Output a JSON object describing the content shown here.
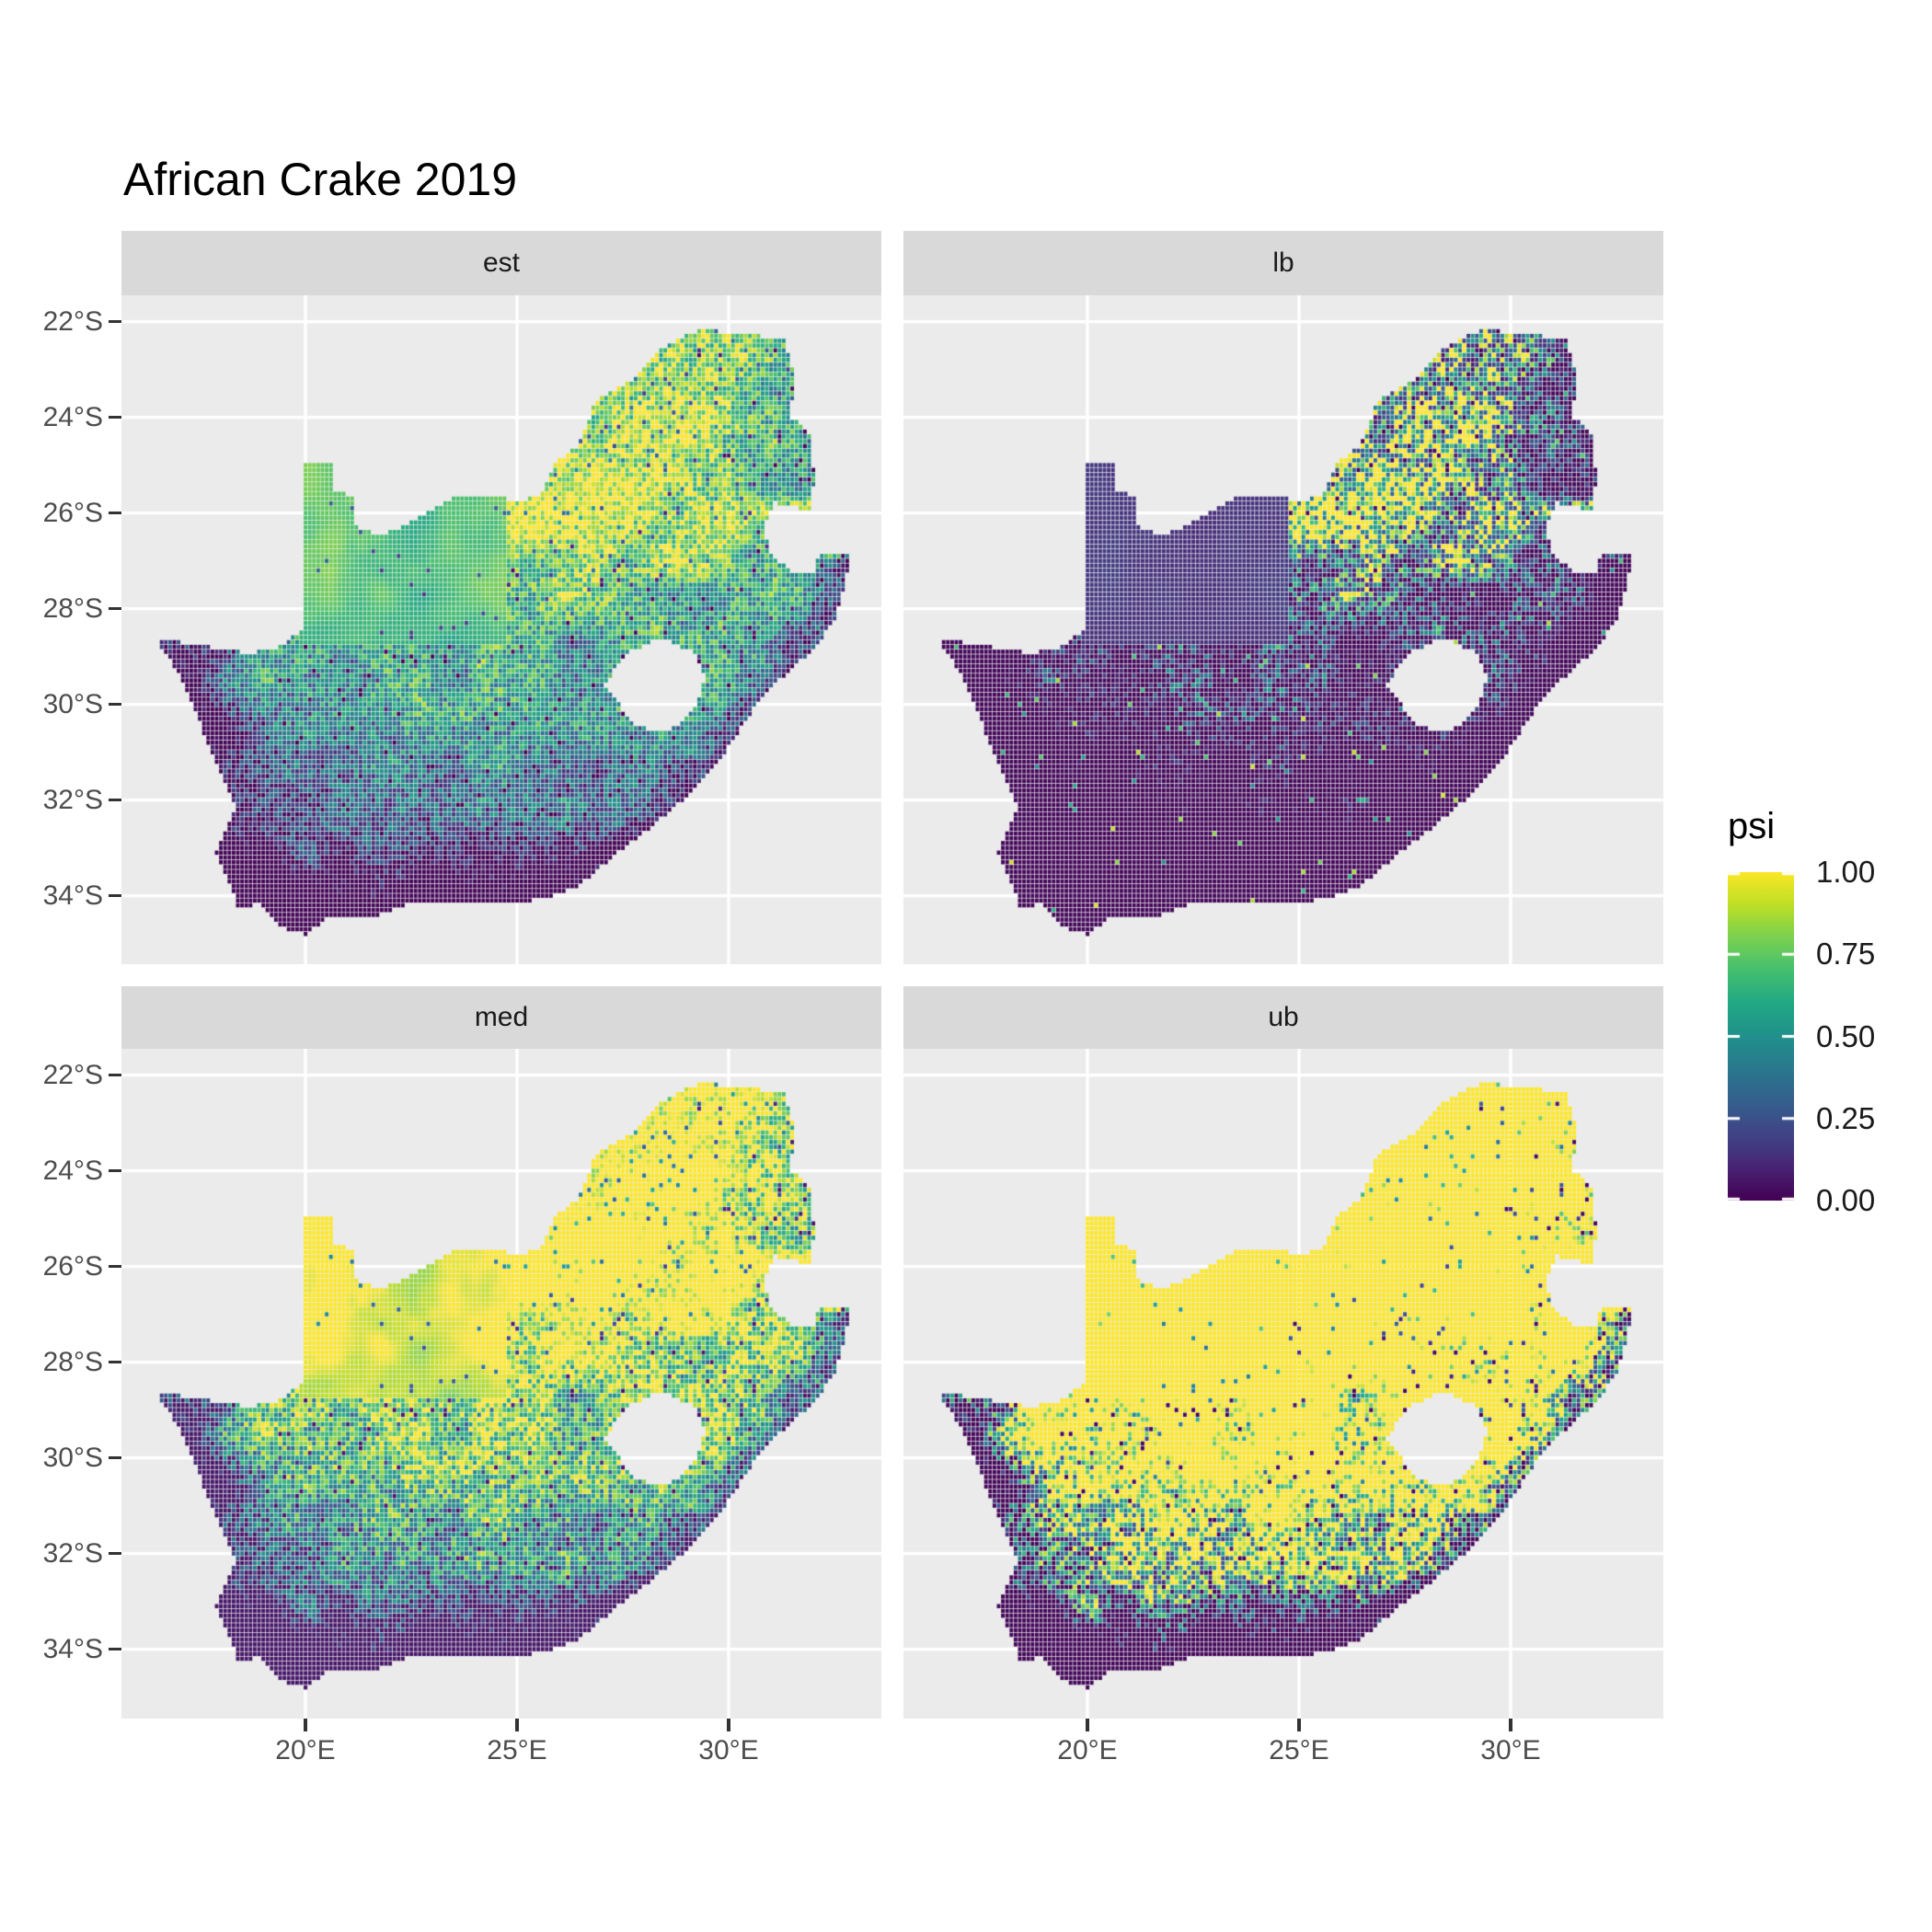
{
  "title": "African Crake 2019",
  "facets": [
    {
      "label": "est",
      "transform": "estimate"
    },
    {
      "label": "lb",
      "transform": "lower_bound"
    },
    {
      "label": "med",
      "transform": "median"
    },
    {
      "label": "ub",
      "transform": "upper_bound"
    }
  ],
  "axes": {
    "x": {
      "ticks": [
        {
          "label": "20°E",
          "lon": 20
        },
        {
          "label": "25°E",
          "lon": 25
        },
        {
          "label": "30°E",
          "lon": 30
        }
      ]
    },
    "y": {
      "ticks": [
        {
          "label": "22°S",
          "lat": -22
        },
        {
          "label": "24°S",
          "lat": -24
        },
        {
          "label": "26°S",
          "lat": -26
        },
        {
          "label": "28°S",
          "lat": -28
        },
        {
          "label": "30°S",
          "lat": -30
        },
        {
          "label": "32°S",
          "lat": -32
        },
        {
          "label": "34°S",
          "lat": -34
        }
      ]
    }
  },
  "legend": {
    "title": "psi",
    "ticks": [
      {
        "label": "1.00",
        "value": 1.0
      },
      {
        "label": "0.75",
        "value": 0.75
      },
      {
        "label": "0.50",
        "value": 0.5
      },
      {
        "label": "0.25",
        "value": 0.25
      },
      {
        "label": "0.00",
        "value": 0.0
      }
    ]
  },
  "style": {
    "background": "#FFFFFF",
    "panel_bg": "#EBEBEB",
    "strip_bg": "#D9D9D9",
    "gridline": "#FFFFFF",
    "axis_text": "#4D4D4D",
    "tick_color": "#333333",
    "strip_text": "#1A1A1A",
    "title_color": "#000000"
  },
  "chart_data": {
    "type": "heatmap",
    "subtype": "faceted raster occupancy map (ggplot2 geom_raster + facet_wrap)",
    "title": "African Crake 2019",
    "region": "South Africa",
    "facet_values": [
      "est",
      "lb",
      "med",
      "ub"
    ],
    "fill_variable": "psi",
    "fill_range": [
      0,
      1
    ],
    "legend_breaks": [
      0.0,
      0.25,
      0.5,
      0.75,
      1.0
    ],
    "colormap": "viridis",
    "colormap_stops": [
      [
        0.0,
        "#440154"
      ],
      [
        0.1,
        "#482475"
      ],
      [
        0.2,
        "#414487"
      ],
      [
        0.3,
        "#355F8D"
      ],
      [
        0.4,
        "#2A788E"
      ],
      [
        0.5,
        "#21918C"
      ],
      [
        0.6,
        "#22A884"
      ],
      [
        0.7,
        "#44BF70"
      ],
      [
        0.8,
        "#7AD151"
      ],
      [
        0.9,
        "#BDDF26"
      ],
      [
        1.0,
        "#FDE725"
      ]
    ],
    "extent": {
      "lon": [
        15.652,
        33.65
      ],
      "lat": [
        -35.43,
        -21.45
      ]
    },
    "cell_size_deg": 0.1,
    "grid_major_lon": [
      20,
      25,
      30
    ],
    "grid_major_lat": [
      -22,
      -24,
      -26,
      -28,
      -30,
      -32,
      -34
    ],
    "facet_summaries": {
      "est": "Estimated psi: high (green/yellow, 0.6-1.0) in the north and north-east with a bright core near 26-29E 25-27S, smooth light-green Kalahari strip west of 24E, speckled mid values (0.3-0.7) through the centre, low (dark purple, 0-0.2) along the west coast, south-west and the southern coastal belt.",
      "lb": "Lower bound: mostly near 0 (dark purple) everywhere; uniform slate-blue (~0.2) over the Kalahari strip; scattered yellow/green clusters (0.6-1.0) only in the north-east core; sparse bright speckles elsewhere.",
      "med": "Median psi: like est but brighter - solid yellow (~1.0) across the north and Kalahari, green/teal mid-latitudes, dark purple south and west coastal margins.",
      "ub": "Upper bound: almost uniformly 1.0 (yellow) nationwide, with dark purple/teal (0-0.4) confined to the west coast edge, the southern coastal belt and east coast fringe, plus green speckles inland in the south."
    },
    "boundary_lonlat": [
      [
        16.45,
        -28.6
      ],
      [
        17.6,
        -28.78
      ],
      [
        18.6,
        -28.92
      ],
      [
        19.3,
        -28.86
      ],
      [
        19.98,
        -28.42
      ],
      [
        19.98,
        -24.95
      ],
      [
        20.65,
        -24.92
      ],
      [
        20.6,
        -25.55
      ],
      [
        21.1,
        -25.62
      ],
      [
        21.15,
        -26.28
      ],
      [
        21.8,
        -26.48
      ],
      [
        22.55,
        -26.15
      ],
      [
        22.95,
        -25.95
      ],
      [
        23.65,
        -25.6
      ],
      [
        24.25,
        -25.62
      ],
      [
        25.0,
        -25.75
      ],
      [
        25.55,
        -25.62
      ],
      [
        25.9,
        -24.92
      ],
      [
        26.45,
        -24.6
      ],
      [
        26.85,
        -23.68
      ],
      [
        27.7,
        -23.22
      ],
      [
        28.35,
        -22.58
      ],
      [
        29.35,
        -22.15
      ],
      [
        30.3,
        -22.28
      ],
      [
        31.3,
        -22.32
      ],
      [
        31.6,
        -23.3
      ],
      [
        31.42,
        -23.95
      ],
      [
        31.95,
        -24.35
      ],
      [
        32.02,
        -25.3
      ],
      [
        31.95,
        -25.95
      ],
      [
        31.1,
        -25.78
      ],
      [
        30.82,
        -26.3
      ],
      [
        31.05,
        -26.95
      ],
      [
        31.5,
        -27.2
      ],
      [
        31.97,
        -27.31
      ],
      [
        32.13,
        -26.88
      ],
      [
        32.89,
        -26.86
      ],
      [
        32.55,
        -28.2
      ],
      [
        32.0,
        -28.85
      ],
      [
        31.25,
        -29.45
      ],
      [
        30.65,
        -30.0
      ],
      [
        30.0,
        -30.9
      ],
      [
        29.25,
        -31.75
      ],
      [
        28.4,
        -32.4
      ],
      [
        27.4,
        -33.1
      ],
      [
        26.45,
        -33.8
      ],
      [
        25.65,
        -34.05
      ],
      [
        24.85,
        -34.2
      ],
      [
        23.6,
        -34.1
      ],
      [
        22.55,
        -34.15
      ],
      [
        21.6,
        -34.45
      ],
      [
        20.5,
        -34.5
      ],
      [
        20.0,
        -34.83
      ],
      [
        19.35,
        -34.62
      ],
      [
        18.85,
        -34.15
      ],
      [
        18.42,
        -34.32
      ],
      [
        18.3,
        -33.9
      ],
      [
        17.9,
        -33.1
      ],
      [
        18.35,
        -32.1
      ],
      [
        17.6,
        -30.6
      ],
      [
        17.05,
        -29.4
      ]
    ],
    "lesotho_hole_lonlat": [
      [
        27.05,
        -29.6
      ],
      [
        27.55,
        -28.95
      ],
      [
        28.4,
        -28.6
      ],
      [
        29.15,
        -28.9
      ],
      [
        29.45,
        -29.4
      ],
      [
        29.25,
        -30.05
      ],
      [
        28.55,
        -30.6
      ],
      [
        27.8,
        -30.45
      ]
    ],
    "render_params": {
      "seed": 7,
      "gradient": {
        "south_lat": -35.3,
        "span": 13.0,
        "base_min": 0.1,
        "base_amp": 0.8
      },
      "hotspots": [
        {
          "lon": 27.8,
          "lat": -25.9,
          "sx": 2.8,
          "sy": 1.9,
          "amp": 0.28
        },
        {
          "lon": 24.0,
          "lat": -26.8,
          "sx": 2.2,
          "sy": 1.6,
          "amp": 0.18
        },
        {
          "lon": 25.5,
          "lat": -30.0,
          "sx": 3.5,
          "sy": 1.4,
          "amp": 0.12
        }
      ],
      "kalahari": {
        "lon_min": 19.9,
        "lon_max": 24.8,
        "lat_min": -28.8,
        "lat_max": -24.5
      },
      "east_coast": [
        [
          -33.2,
          27.3
        ],
        [
          -32.2,
          28.8
        ],
        [
          -31.0,
          30.0
        ],
        [
          -29.8,
          31.0
        ],
        [
          -28.6,
          32.2
        ],
        [
          -26.9,
          32.9
        ]
      ]
    }
  }
}
